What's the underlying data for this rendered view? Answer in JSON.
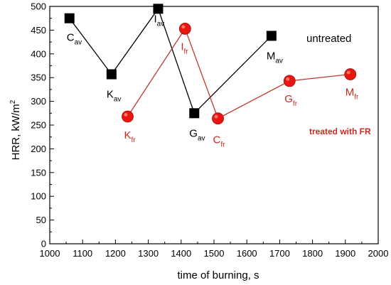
{
  "chart_data": {
    "type": "line",
    "xlabel": "time of burning, s",
    "ylabel_main": "HRR, kW/m",
    "ylabel_sup": "2",
    "xlim": [
      1000,
      2000
    ],
    "ylim": [
      0,
      500
    ],
    "x_ticks": [
      1000,
      1100,
      1200,
      1300,
      1400,
      1500,
      1600,
      1700,
      1800,
      1900,
      2000
    ],
    "y_ticks": [
      0,
      50,
      100,
      150,
      200,
      250,
      300,
      350,
      400,
      450,
      500
    ],
    "grid": false,
    "series": [
      {
        "name": "untreated",
        "marker": "square",
        "color": "#000000",
        "line_color": "#000000",
        "x": [
          1060,
          1188,
          1330,
          1440,
          1675
        ],
        "y": [
          475,
          357,
          495,
          275,
          438
        ],
        "point_labels": [
          {
            "main": "C",
            "sub": "av"
          },
          {
            "main": "K",
            "sub": "av"
          },
          {
            "main": "I",
            "sub": "av"
          },
          {
            "main": "G",
            "sub": "av"
          },
          {
            "main": "M",
            "sub": "av"
          }
        ]
      },
      {
        "name": "treated with FR",
        "marker": "circle",
        "color": "#e8160f",
        "line_color": "#c2372a",
        "x": [
          1237,
          1412,
          1512,
          1730,
          1915
        ],
        "y": [
          268,
          453,
          264,
          343,
          357
        ],
        "point_labels": [
          {
            "main": "K",
            "sub": "fr"
          },
          {
            "main": "I",
            "sub": "fr"
          },
          {
            "main": "C",
            "sub": "fr"
          },
          {
            "main": "G",
            "sub": "fr"
          },
          {
            "main": "M",
            "sub": "fr"
          }
        ]
      }
    ]
  }
}
